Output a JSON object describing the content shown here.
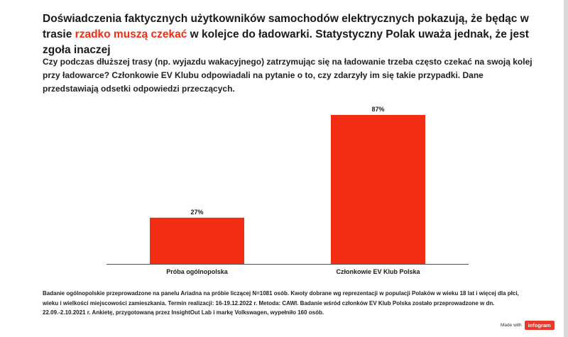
{
  "header": {
    "title_part1": "Doświadczenia faktycznych użytkowników samochodów elektrycznych pokazują, że będąc w trasie ",
    "title_highlight": "rzadko muszą czekać",
    "title_part2": " w kolejce do ładowarki. Statystyczny Polak uważa jednak, że jest zgoła inaczej",
    "subtitle": "Czy podczas dłuższej trasy (np. wyjazdu wakacyjnego) zatrzymując się na ładowanie trzeba często czekać na swoją kolej przy ładowarce? Członkowie EV Klubu odpowiadali na pytanie o to, czy zdarzyły im się takie przypadki. Dane przedstawiają odsetki odpowiedzi przeczących."
  },
  "chart_data": {
    "type": "bar",
    "categories": [
      "Próba ogólnopolska",
      "Członkowie EV Klub Polska"
    ],
    "values": [
      27,
      87
    ],
    "value_labels": [
      "27%",
      "87%"
    ],
    "title": "",
    "xlabel": "",
    "ylabel": "",
    "ylim": [
      0,
      87
    ],
    "grid": false,
    "bar_color": "#f22d14"
  },
  "footnote": "Badanie ogólnopolskie przeprowadzone na panelu Ariadna na próbie liczącej N=1081 osób. Kwoty dobrane wg reprezentacji w populacji Polaków w wieku 18 lat i więcej dla płci, wieku i wielkości miejscowości zamieszkania. Termin realizacji: 16-19.12.2022 r. Metoda: CAWI. Badanie wśród członków EV Klub Polska zostało przeprowadzone w dn. 22.09.-2.10.2021 r. Ankietę, przygotowaną przez InsightOut Lab i markę Volkswagen, wypełniło 160 osób.",
  "brand": {
    "made_with": "Made with",
    "logo": "infogram"
  }
}
